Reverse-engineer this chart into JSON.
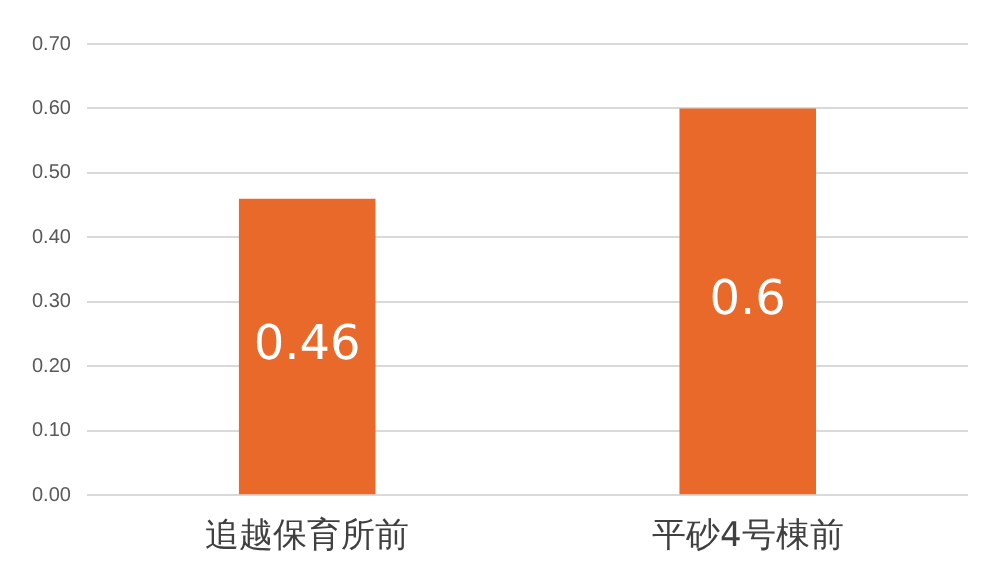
{
  "chart_data": {
    "type": "bar",
    "categories": [
      "追越保育所前",
      "平砂4号棟前"
    ],
    "values": [
      0.46,
      0.6
    ],
    "color": "#e8692a",
    "data_labels": true,
    "ylim": [
      0,
      0.7
    ],
    "yticks": [
      {
        "value": 0,
        "label": "0.00"
      },
      {
        "value": 0.1,
        "label": "0.10"
      },
      {
        "value": 0.2,
        "label": "0.20"
      },
      {
        "value": 0.3,
        "label": "0.30"
      },
      {
        "value": 0.4,
        "label": "0.40"
      },
      {
        "value": 0.5,
        "label": "0.50"
      },
      {
        "value": 0.6,
        "label": "0.60"
      },
      {
        "value": 0.7,
        "label": "0.70"
      }
    ],
    "grid": "y",
    "legend": false
  }
}
